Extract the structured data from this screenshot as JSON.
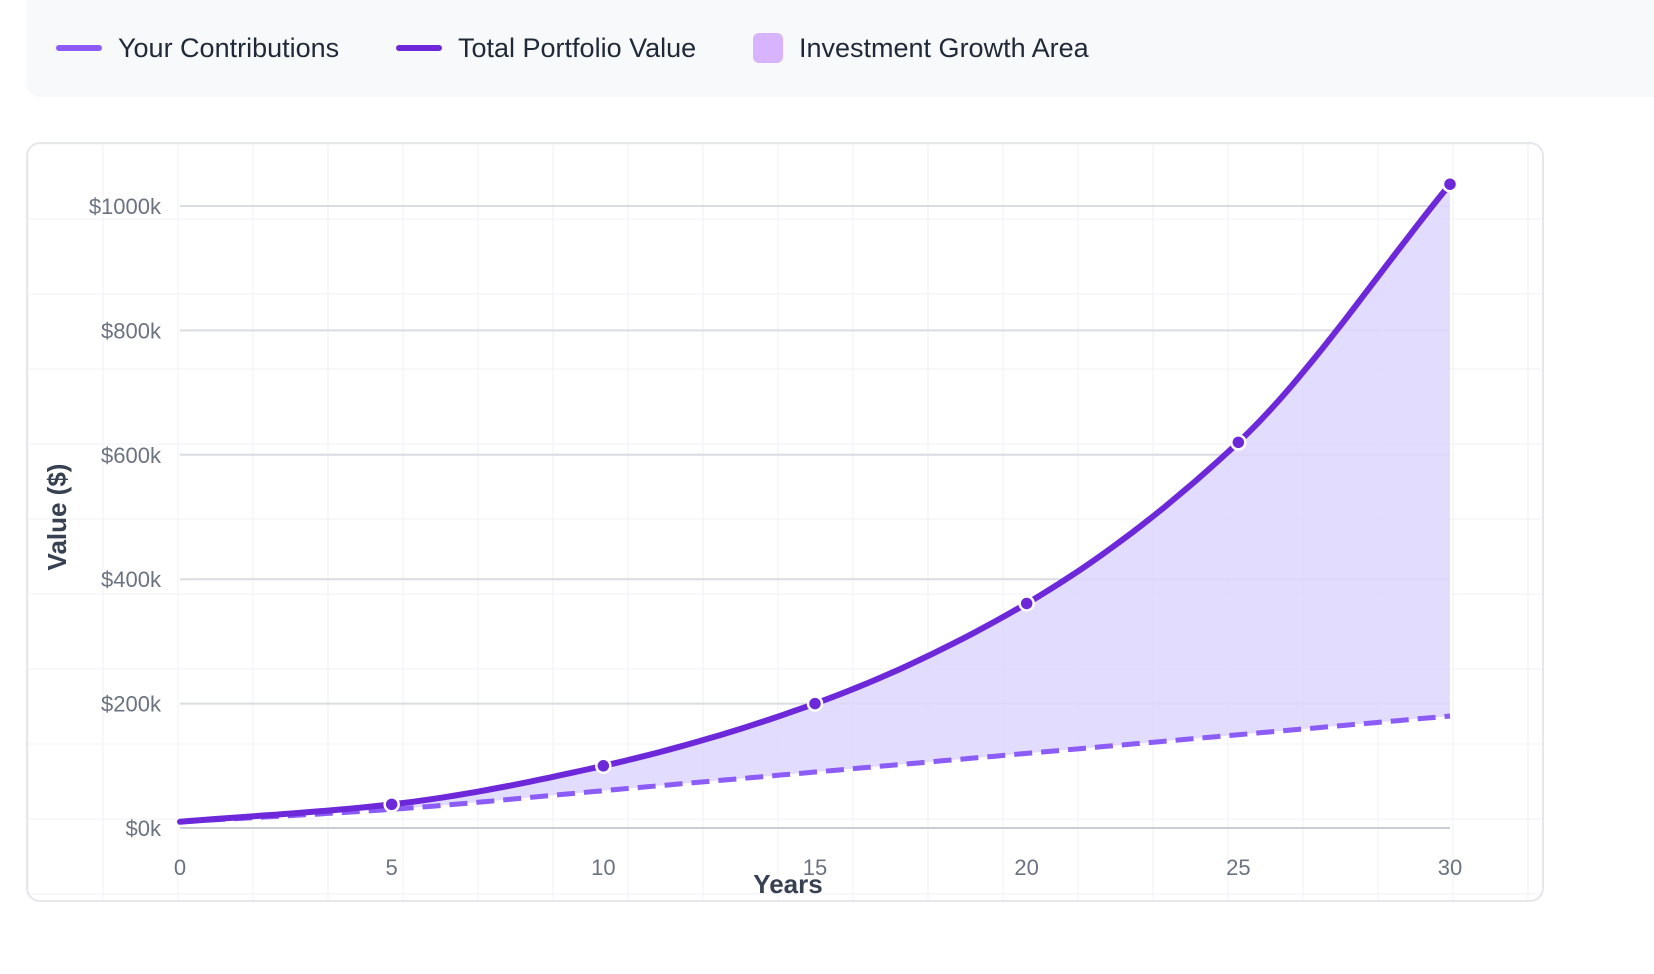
{
  "legend": {
    "contributions": {
      "label": "Your Contributions",
      "color": "#8b5cf6"
    },
    "portfolio": {
      "label": "Total Portfolio Value",
      "color": "#6d28d9"
    },
    "growth": {
      "label": "Investment Growth Area",
      "color": "#d8b4fe"
    }
  },
  "chart_data": {
    "type": "line",
    "title": "",
    "xlabel": "Years",
    "ylabel": "Value ($)",
    "xlim": [
      0,
      30
    ],
    "ylim": [
      0,
      1000000
    ],
    "x_ticks": [
      "0",
      "5",
      "10",
      "15",
      "20",
      "25",
      "30"
    ],
    "y_ticks": [
      "$0k",
      "$200k",
      "$400k",
      "$600k",
      "$800k",
      "$1000k"
    ],
    "grid": true,
    "legend_position": "top",
    "x": [
      0,
      5,
      10,
      15,
      20,
      25,
      30
    ],
    "series": [
      {
        "name": "Your Contributions",
        "style": "dashed",
        "color": "#8b5cf6",
        "values": [
          10000,
          30000,
          60000,
          90000,
          120000,
          150000,
          180000
        ]
      },
      {
        "name": "Total Portfolio Value",
        "style": "solid",
        "color": "#6d28d9",
        "values": [
          10000,
          38000,
          100000,
          200000,
          361000,
          620000,
          1035000
        ]
      }
    ],
    "area": {
      "name": "Investment Growth Area",
      "between": [
        "Your Contributions",
        "Total Portfolio Value"
      ],
      "color": "#ddd6fe"
    }
  }
}
